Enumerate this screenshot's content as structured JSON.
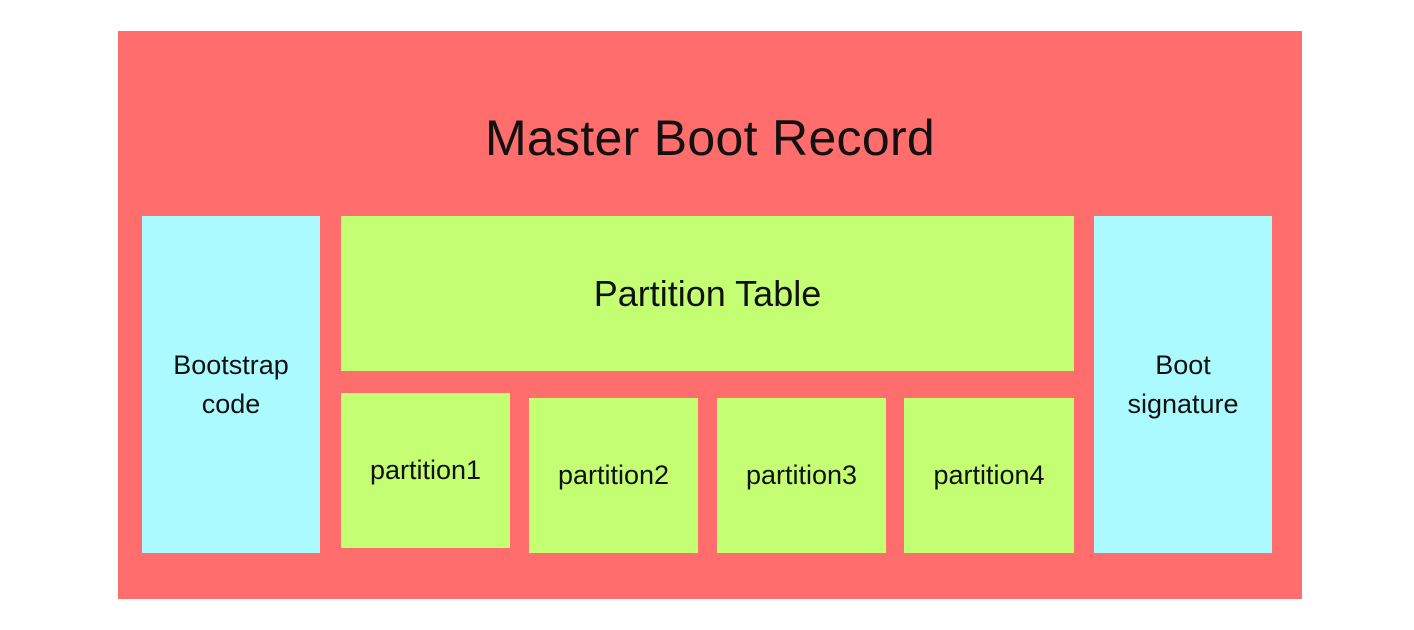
{
  "title": "Master Boot Record",
  "bootstrap_code": "Bootstrap\ncode",
  "partition_table": "Partition Table",
  "boot_signature": "Boot\nsignature",
  "partitions": [
    "partition1",
    "partition2",
    "partition3",
    "partition4"
  ],
  "colors": {
    "mbr_background": "#ff6e6c",
    "side_block": "#aafaff",
    "partition_block": "#c4ff73"
  }
}
